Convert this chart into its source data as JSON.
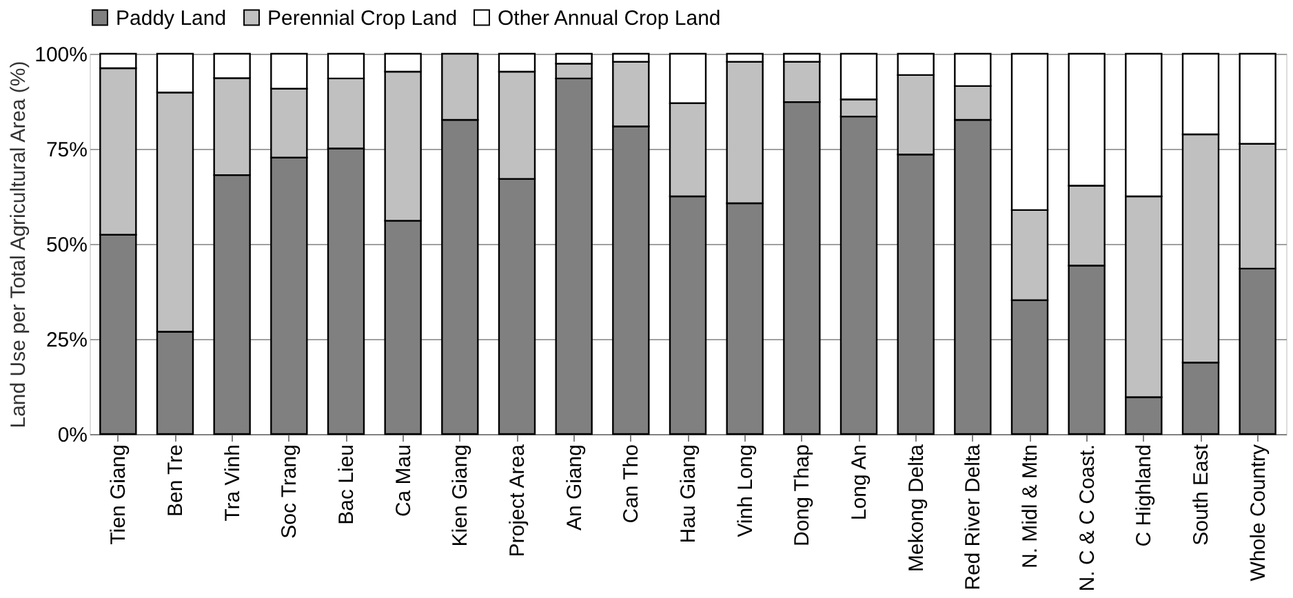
{
  "chart_data": {
    "type": "bar",
    "stacked": true,
    "ylabel": "Land Use per Total Agricultural Area (%)",
    "categories": [
      "Tien Giang",
      "Ben Tre",
      "Tra Vinh",
      "Soc Trang",
      "Bac Lieu",
      "Ca Mau",
      "Kien Giang",
      "Project Area",
      "An Giang",
      "Can Tho",
      "Hau Giang",
      "Vinh Long",
      "Dong Thap",
      "Long An",
      "Mekong Delta",
      "Red River Delta",
      "N. Midl & Mtn",
      "N. C & C Coast.",
      "C Highland",
      "South East",
      "Whole Country"
    ],
    "series": [
      {
        "name": "Paddy Land",
        "color": "#808080",
        "values": [
          52.4,
          26.9,
          68.1,
          72.7,
          75.1,
          56.1,
          82.6,
          67.1,
          93.5,
          80.9,
          62.5,
          60.7,
          87.3,
          83.5,
          73.5,
          82.6,
          35.2,
          44.3,
          9.7,
          18.8,
          43.5
        ]
      },
      {
        "name": "Perennial Crop Land",
        "color": "#c0c0c0",
        "values": [
          43.8,
          62.9,
          25.5,
          18.1,
          18.4,
          39.2,
          17.4,
          28.2,
          3.9,
          17.0,
          24.5,
          37.2,
          10.6,
          4.5,
          20.9,
          8.9,
          23.7,
          21.0,
          52.8,
          60.0,
          32.8
        ]
      },
      {
        "name": "Other Annual Crop Land",
        "color": "#ffffff",
        "values": [
          3.8,
          10.2,
          6.4,
          9.2,
          6.5,
          4.7,
          null,
          4.7,
          2.6,
          2.1,
          13.0,
          2.1,
          2.1,
          12.0,
          5.6,
          8.5,
          41.1,
          34.7,
          37.5,
          21.2,
          23.7
        ]
      }
    ],
    "ylim": [
      0,
      100
    ],
    "yticks": [
      {
        "value": 0,
        "label": "0%"
      },
      {
        "value": 25,
        "label": "25%"
      },
      {
        "value": 50,
        "label": "50%"
      },
      {
        "value": 75,
        "label": "75%"
      },
      {
        "value": 100,
        "label": "100%"
      }
    ],
    "grid": "y",
    "legend": "top"
  }
}
